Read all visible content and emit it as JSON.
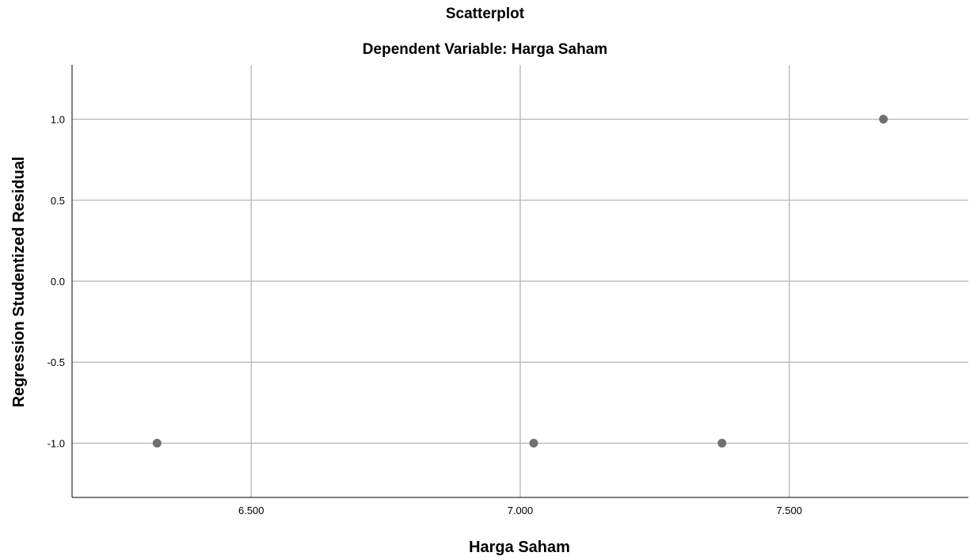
{
  "chart_data": {
    "type": "scatter",
    "title": "Scatterplot",
    "subtitle": "Dependent Variable: Harga Saham",
    "xlabel": "Harga Saham",
    "ylabel": "Regression Studentized Residual",
    "xlim": [
      6.167,
      7.833
    ],
    "ylim": [
      -1.335,
      1.335
    ],
    "x_ticks": [
      6.5,
      7.0,
      7.5
    ],
    "x_tick_labels": [
      "6.500",
      "7.000",
      "7.500"
    ],
    "y_ticks": [
      -1.0,
      -0.5,
      0.0,
      0.5,
      1.0
    ],
    "y_tick_labels": [
      "-1.0",
      "-0.5",
      "0.0",
      "0.5",
      "1.0"
    ],
    "grid": true,
    "marker_color": "#707070",
    "grid_color": "#b4b4b4",
    "series": [
      {
        "points": [
          {
            "x": 6.325,
            "y": -1.0
          },
          {
            "x": 7.025,
            "y": -1.0
          },
          {
            "x": 7.375,
            "y": -1.0
          },
          {
            "x": 7.675,
            "y": 1.0
          }
        ]
      }
    ]
  }
}
